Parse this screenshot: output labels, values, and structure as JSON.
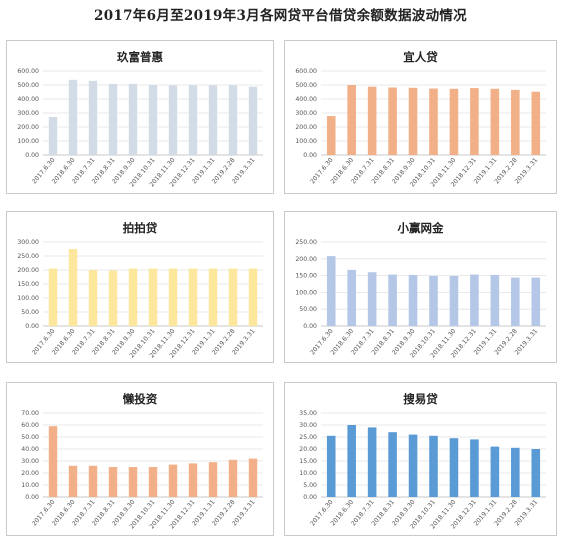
{
  "page": {
    "title": "2017年6月至2019年3月各网贷平台借贷余额数据波动情况"
  },
  "chart_data": [
    {
      "type": "bar",
      "title": "玖富普惠",
      "color": "#d3dbe6",
      "categories": [
        "2017.6.30",
        "2018.6.30",
        "2018.7.31",
        "2018.8.31",
        "2018.9.30",
        "2018.10.31",
        "2018.11.30",
        "2018.12.31",
        "2019.1.31",
        "2019.2.28",
        "2019.3.31"
      ],
      "values": [
        272,
        537,
        530,
        508,
        508,
        500,
        497,
        497,
        498,
        497,
        488
      ],
      "ylim": [
        0,
        600
      ],
      "yticks": [
        "0.00",
        "100.00",
        "200.00",
        "300.00",
        "400.00",
        "500.00",
        "600.00"
      ],
      "grid": true
    },
    {
      "type": "bar",
      "title": "宜人贷",
      "color": "#f2b088",
      "categories": [
        "2017.6.30",
        "2018.6.30",
        "2018.7.31",
        "2018.8.31",
        "2018.9.30",
        "2018.10.31",
        "2018.11.30",
        "2018.12.31",
        "2019.1.31",
        "2019.2.28",
        "2019.3.31"
      ],
      "values": [
        278,
        500,
        488,
        482,
        480,
        475,
        473,
        478,
        473,
        465,
        452
      ],
      "ylim": [
        0,
        600
      ],
      "yticks": [
        "0.00",
        "100.00",
        "200.00",
        "300.00",
        "400.00",
        "500.00",
        "600.00"
      ],
      "grid": true
    },
    {
      "type": "bar",
      "title": "拍拍贷",
      "color": "#fde79c",
      "categories": [
        "2017.6.30",
        "2018.6.30",
        "2018.7.31",
        "2018.8.31",
        "2018.9.30",
        "2018.10.31",
        "2018.11.30",
        "2018.12.31",
        "2019.1.31",
        "2019.2.28",
        "2019.3.31"
      ],
      "values": [
        205,
        275,
        200,
        198,
        205,
        205,
        205,
        205,
        205,
        205,
        205
      ],
      "ylim": [
        0,
        300
      ],
      "yticks": [
        "0.00",
        "50.00",
        "100.00",
        "150.00",
        "200.00",
        "250.00",
        "300.00"
      ],
      "grid": true
    },
    {
      "type": "bar",
      "title": "小赢网金",
      "color": "#b4c7e7",
      "categories": [
        "2017.6.30",
        "2018.6.30",
        "2018.7.31",
        "2018.8.31",
        "2018.9.30",
        "2018.10.31",
        "2018.11.30",
        "2018.12.31",
        "2019.1.31",
        "2019.2.28",
        "2019.3.31"
      ],
      "values": [
        208,
        167,
        160,
        153,
        152,
        149,
        149,
        153,
        152,
        144,
        144
      ],
      "ylim": [
        0,
        250
      ],
      "yticks": [
        "0.00",
        "50.00",
        "100.00",
        "150.00",
        "200.00",
        "250.00"
      ],
      "grid": true
    },
    {
      "type": "bar",
      "title": "懒投资",
      "color": "#f2b088",
      "categories": [
        "2017.6.30",
        "2018.6.30",
        "2018.7.31",
        "2018.8.31",
        "2018.9.30",
        "2018.10.31",
        "2018.11.30",
        "2018.12.31",
        "2019.1.31",
        "2019.2.28",
        "2019.3.31"
      ],
      "values": [
        59,
        26,
        26,
        25,
        25,
        25,
        27,
        28,
        29,
        31,
        32
      ],
      "ylim": [
        0,
        70
      ],
      "yticks": [
        "0.00",
        "10.00",
        "20.00",
        "30.00",
        "40.00",
        "50.00",
        "60.00",
        "70.00"
      ],
      "grid": true
    },
    {
      "type": "bar",
      "title": "搜易贷",
      "color": "#5b9bd5",
      "categories": [
        "2017.6.30",
        "2018.6.30",
        "2018.7.31",
        "2018.8.31",
        "2018.9.30",
        "2018.10.31",
        "2018.11.30",
        "2018.12.31",
        "2019.1.31",
        "2019.2.28",
        "2019.3.31"
      ],
      "values": [
        25.5,
        30,
        29,
        27,
        26,
        25.5,
        24.5,
        24,
        21,
        20.5,
        20
      ],
      "ylim": [
        0,
        35
      ],
      "yticks": [
        "0.00",
        "5.00",
        "10.00",
        "15.00",
        "20.00",
        "25.00",
        "30.00",
        "35.00"
      ],
      "grid": true
    }
  ]
}
